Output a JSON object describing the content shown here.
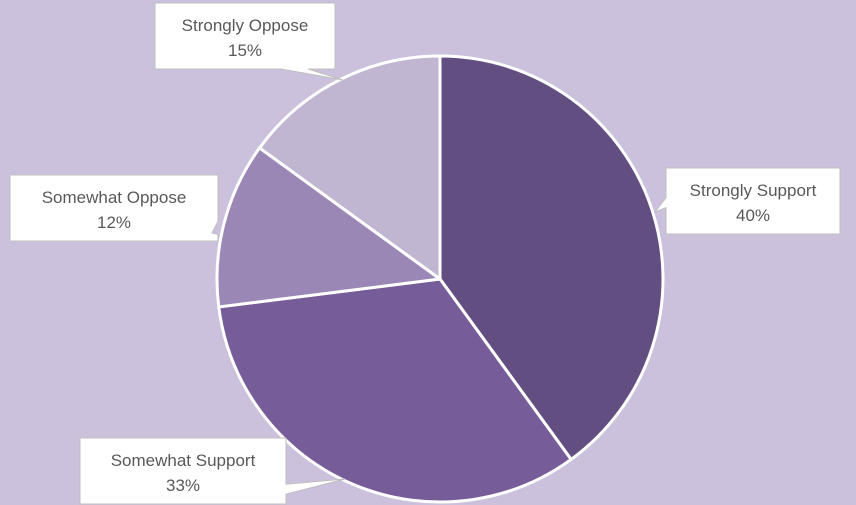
{
  "chart_data": {
    "type": "pie",
    "title": "",
    "slices": [
      {
        "label": "Strongly Support",
        "value": 40,
        "value_label": "40%",
        "color": "#624e80"
      },
      {
        "label": "Somewhat Support",
        "value": 33,
        "value_label": "33%",
        "color": "#765c98"
      },
      {
        "label": "Somewhat Oppose",
        "value": 12,
        "value_label": "12%",
        "color": "#9b87b5"
      },
      {
        "label": "Strongly Oppose",
        "value": 15,
        "value_label": "15%",
        "color": "#c1b6d1"
      }
    ],
    "start_angle": "12 o'clock",
    "direction": "clockwise",
    "legend": "none",
    "data_labels": "callouts"
  },
  "colors": {
    "background": "#ccc1dd",
    "slice_border": "#ffffff",
    "callout_fill": "#ffffff",
    "callout_border": "#bfbfbf",
    "callout_text": "#595959"
  }
}
